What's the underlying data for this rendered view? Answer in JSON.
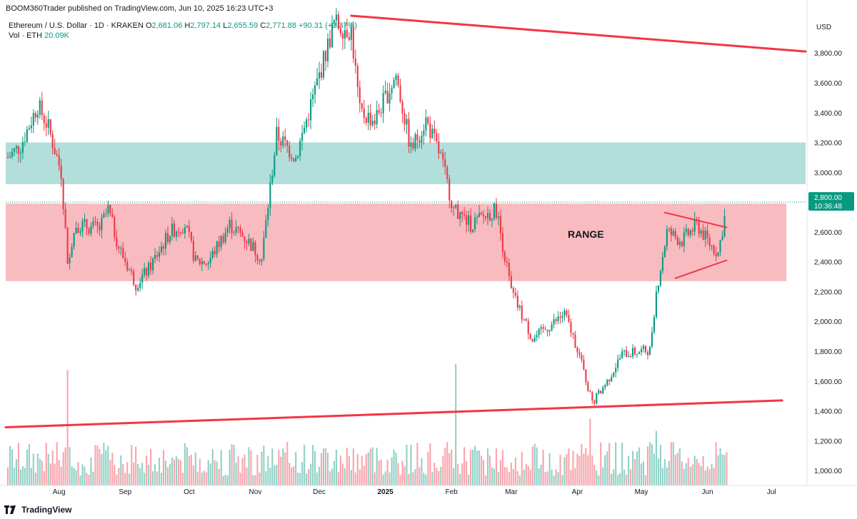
{
  "header": {
    "publish_line": "BOOM360Trader published on TradingView.com, Jun 10, 2025 16:23 UTC+3"
  },
  "legend": {
    "symbol": "Ethereum / U.S. Dollar · 1D · KRAKEN",
    "open_key": "O",
    "open": "2,681.06",
    "high_key": "H",
    "high": "2,797.14",
    "low_key": "L",
    "low": "2,655.59",
    "close_key": "C",
    "close": "2,771.88",
    "change": "+90.31 (+3.37%)",
    "volume_label": "Vol · ETH",
    "volume": "20.09K"
  },
  "price_axis": {
    "currency": "USD",
    "current_price_label": "2,800.00",
    "countdown": "10:36:48"
  },
  "footer": {
    "brand": "TradingView"
  },
  "annotations": {
    "range_label": "RANGE"
  },
  "colors": {
    "up": "#089981",
    "down": "#f23645",
    "trendline": "#f23645",
    "supply_zone": "#b2dfdb",
    "range_zone": "#f8bbc0",
    "countdown_bg": "#089981"
  },
  "chart_data": {
    "type": "candlestick",
    "title": "Ethereum / U.S. Dollar · 1D · KRAKEN",
    "ylim": [
      900,
      4050
    ],
    "y_ticks": [
      "1,000.00",
      "1,200.00",
      "1,400.00",
      "1,600.00",
      "1,800.00",
      "2,000.00",
      "2,200.00",
      "2,400.00",
      "2,600.00",
      "2,800.00",
      "3,000.00",
      "3,200.00",
      "3,400.00",
      "3,600.00",
      "3,800.00"
    ],
    "x_range": [
      "2024-07-07",
      "2025-07-17"
    ],
    "x_ticks": [
      {
        "label": "Aug",
        "date": "2024-08-01"
      },
      {
        "label": "Sep",
        "date": "2024-09-01"
      },
      {
        "label": "Oct",
        "date": "2024-10-01"
      },
      {
        "label": "Nov",
        "date": "2024-11-01"
      },
      {
        "label": "Dec",
        "date": "2024-12-01"
      },
      {
        "label": "2025",
        "date": "2025-01-01"
      },
      {
        "label": "Feb",
        "date": "2025-02-01"
      },
      {
        "label": "Mar",
        "date": "2025-03-01"
      },
      {
        "label": "Apr",
        "date": "2025-04-01"
      },
      {
        "label": "May",
        "date": "2025-05-01"
      },
      {
        "label": "Jun",
        "date": "2025-06-01"
      },
      {
        "label": "Jul",
        "date": "2025-07-01"
      }
    ],
    "path_start_date": "2024-07-08",
    "close_path": [
      {
        "date": "2024-07-08",
        "close": 3100
      },
      {
        "date": "2024-07-14",
        "close": 3180
      },
      {
        "date": "2024-07-22",
        "close": 3450
      },
      {
        "date": "2024-07-27",
        "close": 3300
      },
      {
        "date": "2024-08-02",
        "close": 3000
      },
      {
        "date": "2024-08-05",
        "close": 2420
      },
      {
        "date": "2024-08-09",
        "close": 2650
      },
      {
        "date": "2024-08-20",
        "close": 2620
      },
      {
        "date": "2024-08-24",
        "close": 2750
      },
      {
        "date": "2024-08-29",
        "close": 2500
      },
      {
        "date": "2024-09-06",
        "close": 2250
      },
      {
        "date": "2024-09-12",
        "close": 2350
      },
      {
        "date": "2024-09-22",
        "close": 2600
      },
      {
        "date": "2024-09-29",
        "close": 2650
      },
      {
        "date": "2024-10-04",
        "close": 2400
      },
      {
        "date": "2024-10-10",
        "close": 2400
      },
      {
        "date": "2024-10-20",
        "close": 2650
      },
      {
        "date": "2024-10-28",
        "close": 2550
      },
      {
        "date": "2024-11-04",
        "close": 2420
      },
      {
        "date": "2024-11-08",
        "close": 2900
      },
      {
        "date": "2024-11-11",
        "close": 3250
      },
      {
        "date": "2024-11-20",
        "close": 3100
      },
      {
        "date": "2024-11-30",
        "close": 3600
      },
      {
        "date": "2024-12-08",
        "close": 4000
      },
      {
        "date": "2024-12-16",
        "close": 3950
      },
      {
        "date": "2024-12-20",
        "close": 3400
      },
      {
        "date": "2024-12-27",
        "close": 3350
      },
      {
        "date": "2025-01-06",
        "close": 3650
      },
      {
        "date": "2025-01-13",
        "close": 3150
      },
      {
        "date": "2025-01-20",
        "close": 3350
      },
      {
        "date": "2025-01-27",
        "close": 3100
      },
      {
        "date": "2025-02-02",
        "close": 2750
      },
      {
        "date": "2025-02-10",
        "close": 2650
      },
      {
        "date": "2025-02-22",
        "close": 2750
      },
      {
        "date": "2025-03-01",
        "close": 2200
      },
      {
        "date": "2025-03-11",
        "close": 1880
      },
      {
        "date": "2025-03-20",
        "close": 1980
      },
      {
        "date": "2025-03-26",
        "close": 2050
      },
      {
        "date": "2025-04-01",
        "close": 1820
      },
      {
        "date": "2025-04-08",
        "close": 1450
      },
      {
        "date": "2025-04-15",
        "close": 1600
      },
      {
        "date": "2025-04-22",
        "close": 1780
      },
      {
        "date": "2025-05-05",
        "close": 1810
      },
      {
        "date": "2025-05-08",
        "close": 2200
      },
      {
        "date": "2025-05-13",
        "close": 2600
      },
      {
        "date": "2025-05-20",
        "close": 2540
      },
      {
        "date": "2025-05-27",
        "close": 2650
      },
      {
        "date": "2025-06-02",
        "close": 2520
      },
      {
        "date": "2025-06-06",
        "close": 2460
      },
      {
        "date": "2025-06-10",
        "close": 2771.88
      }
    ],
    "volume_spikes": [
      {
        "date": "2024-08-05",
        "level": 0.95
      },
      {
        "date": "2025-02-03",
        "level": 1.0
      },
      {
        "date": "2025-04-07",
        "level": 0.55
      },
      {
        "date": "2025-05-08",
        "level": 0.45
      }
    ],
    "zones": [
      {
        "name": "supply-zone",
        "from_date": "2024-07-07",
        "to_date": "2025-07-17",
        "y0": 2920,
        "y1": 3200
      },
      {
        "name": "range-zone",
        "from_date": "2024-07-07",
        "to_date": "2025-07-08",
        "y0": 2270,
        "y1": 2790
      }
    ],
    "trendlines": [
      {
        "name": "upper-trendline",
        "from": {
          "date": "2024-12-16",
          "price": 4050
        },
        "to": {
          "date": "2025-07-17",
          "price": 3810
        }
      },
      {
        "name": "lower-trendline",
        "from": {
          "date": "2024-07-07",
          "price": 1290
        },
        "to": {
          "date": "2025-07-06",
          "price": 1470
        }
      },
      {
        "name": "triangle-top",
        "from": {
          "date": "2025-05-12",
          "price": 2730
        },
        "to": {
          "date": "2025-06-10",
          "price": 2630
        }
      },
      {
        "name": "triangle-bottom",
        "from": {
          "date": "2025-05-17",
          "price": 2290
        },
        "to": {
          "date": "2025-06-10",
          "price": 2410
        }
      }
    ],
    "current_price": 2800
  }
}
